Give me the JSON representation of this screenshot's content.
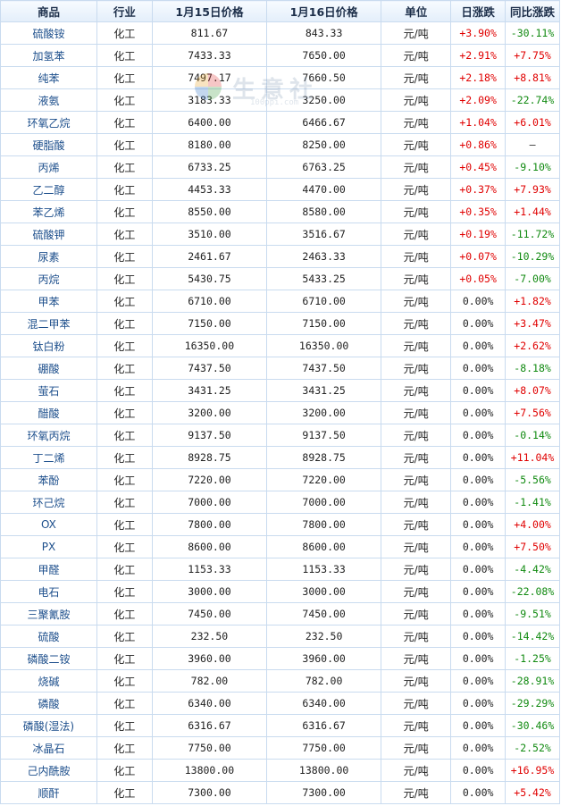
{
  "header": {
    "name": "商品",
    "industry": "行业",
    "price1": "1月15日价格",
    "price2": "1月16日价格",
    "unit": "单位",
    "daily": "日涨跌",
    "yoy": "同比涨跌"
  },
  "watermark": {
    "text": "生意社",
    "url": "100ppi.com"
  },
  "colors": {
    "up": "#e00000",
    "down": "#118a11",
    "border": "#c9dbef",
    "header_bg": "#e3eefa",
    "name": "#1d4f8c"
  },
  "rows": [
    {
      "name": "硫酸铵",
      "industry": "化工",
      "p1": "811.67",
      "p2": "843.33",
      "unit": "元/吨",
      "daily": "+3.90%",
      "daily_dir": "up",
      "yoy": "-30.11%",
      "yoy_dir": "down"
    },
    {
      "name": "加氢苯",
      "industry": "化工",
      "p1": "7433.33",
      "p2": "7650.00",
      "unit": "元/吨",
      "daily": "+2.91%",
      "daily_dir": "up",
      "yoy": "+7.75%",
      "yoy_dir": "up"
    },
    {
      "name": "纯苯",
      "industry": "化工",
      "p1": "7497.17",
      "p2": "7660.50",
      "unit": "元/吨",
      "daily": "+2.18%",
      "daily_dir": "up",
      "yoy": "+8.81%",
      "yoy_dir": "up"
    },
    {
      "name": "液氨",
      "industry": "化工",
      "p1": "3183.33",
      "p2": "3250.00",
      "unit": "元/吨",
      "daily": "+2.09%",
      "daily_dir": "up",
      "yoy": "-22.74%",
      "yoy_dir": "down"
    },
    {
      "name": "环氧乙烷",
      "industry": "化工",
      "p1": "6400.00",
      "p2": "6466.67",
      "unit": "元/吨",
      "daily": "+1.04%",
      "daily_dir": "up",
      "yoy": "+6.01%",
      "yoy_dir": "up"
    },
    {
      "name": "硬脂酸",
      "industry": "化工",
      "p1": "8180.00",
      "p2": "8250.00",
      "unit": "元/吨",
      "daily": "+0.86%",
      "daily_dir": "up",
      "yoy": "—",
      "yoy_dir": "flat"
    },
    {
      "name": "丙烯",
      "industry": "化工",
      "p1": "6733.25",
      "p2": "6763.25",
      "unit": "元/吨",
      "daily": "+0.45%",
      "daily_dir": "up",
      "yoy": "-9.10%",
      "yoy_dir": "down"
    },
    {
      "name": "乙二醇",
      "industry": "化工",
      "p1": "4453.33",
      "p2": "4470.00",
      "unit": "元/吨",
      "daily": "+0.37%",
      "daily_dir": "up",
      "yoy": "+7.93%",
      "yoy_dir": "up"
    },
    {
      "name": "苯乙烯",
      "industry": "化工",
      "p1": "8550.00",
      "p2": "8580.00",
      "unit": "元/吨",
      "daily": "+0.35%",
      "daily_dir": "up",
      "yoy": "+1.44%",
      "yoy_dir": "up"
    },
    {
      "name": "硫酸钾",
      "industry": "化工",
      "p1": "3510.00",
      "p2": "3516.67",
      "unit": "元/吨",
      "daily": "+0.19%",
      "daily_dir": "up",
      "yoy": "-11.72%",
      "yoy_dir": "down"
    },
    {
      "name": "尿素",
      "industry": "化工",
      "p1": "2461.67",
      "p2": "2463.33",
      "unit": "元/吨",
      "daily": "+0.07%",
      "daily_dir": "up",
      "yoy": "-10.29%",
      "yoy_dir": "down"
    },
    {
      "name": "丙烷",
      "industry": "化工",
      "p1": "5430.75",
      "p2": "5433.25",
      "unit": "元/吨",
      "daily": "+0.05%",
      "daily_dir": "up",
      "yoy": "-7.00%",
      "yoy_dir": "down"
    },
    {
      "name": "甲苯",
      "industry": "化工",
      "p1": "6710.00",
      "p2": "6710.00",
      "unit": "元/吨",
      "daily": "0.00%",
      "daily_dir": "flat",
      "yoy": "+1.82%",
      "yoy_dir": "up"
    },
    {
      "name": "混二甲苯",
      "industry": "化工",
      "p1": "7150.00",
      "p2": "7150.00",
      "unit": "元/吨",
      "daily": "0.00%",
      "daily_dir": "flat",
      "yoy": "+3.47%",
      "yoy_dir": "up"
    },
    {
      "name": "钛白粉",
      "industry": "化工",
      "p1": "16350.00",
      "p2": "16350.00",
      "unit": "元/吨",
      "daily": "0.00%",
      "daily_dir": "flat",
      "yoy": "+2.62%",
      "yoy_dir": "up"
    },
    {
      "name": "硼酸",
      "industry": "化工",
      "p1": "7437.50",
      "p2": "7437.50",
      "unit": "元/吨",
      "daily": "0.00%",
      "daily_dir": "flat",
      "yoy": "-8.18%",
      "yoy_dir": "down"
    },
    {
      "name": "萤石",
      "industry": "化工",
      "p1": "3431.25",
      "p2": "3431.25",
      "unit": "元/吨",
      "daily": "0.00%",
      "daily_dir": "flat",
      "yoy": "+8.07%",
      "yoy_dir": "up"
    },
    {
      "name": "醋酸",
      "industry": "化工",
      "p1": "3200.00",
      "p2": "3200.00",
      "unit": "元/吨",
      "daily": "0.00%",
      "daily_dir": "flat",
      "yoy": "+7.56%",
      "yoy_dir": "up"
    },
    {
      "name": "环氧丙烷",
      "industry": "化工",
      "p1": "9137.50",
      "p2": "9137.50",
      "unit": "元/吨",
      "daily": "0.00%",
      "daily_dir": "flat",
      "yoy": "-0.14%",
      "yoy_dir": "down"
    },
    {
      "name": "丁二烯",
      "industry": "化工",
      "p1": "8928.75",
      "p2": "8928.75",
      "unit": "元/吨",
      "daily": "0.00%",
      "daily_dir": "flat",
      "yoy": "+11.04%",
      "yoy_dir": "up"
    },
    {
      "name": "苯酚",
      "industry": "化工",
      "p1": "7220.00",
      "p2": "7220.00",
      "unit": "元/吨",
      "daily": "0.00%",
      "daily_dir": "flat",
      "yoy": "-5.56%",
      "yoy_dir": "down"
    },
    {
      "name": "环己烷",
      "industry": "化工",
      "p1": "7000.00",
      "p2": "7000.00",
      "unit": "元/吨",
      "daily": "0.00%",
      "daily_dir": "flat",
      "yoy": "-1.41%",
      "yoy_dir": "down"
    },
    {
      "name": "OX",
      "industry": "化工",
      "p1": "7800.00",
      "p2": "7800.00",
      "unit": "元/吨",
      "daily": "0.00%",
      "daily_dir": "flat",
      "yoy": "+4.00%",
      "yoy_dir": "up"
    },
    {
      "name": "PX",
      "industry": "化工",
      "p1": "8600.00",
      "p2": "8600.00",
      "unit": "元/吨",
      "daily": "0.00%",
      "daily_dir": "flat",
      "yoy": "+7.50%",
      "yoy_dir": "up"
    },
    {
      "name": "甲醛",
      "industry": "化工",
      "p1": "1153.33",
      "p2": "1153.33",
      "unit": "元/吨",
      "daily": "0.00%",
      "daily_dir": "flat",
      "yoy": "-4.42%",
      "yoy_dir": "down"
    },
    {
      "name": "电石",
      "industry": "化工",
      "p1": "3000.00",
      "p2": "3000.00",
      "unit": "元/吨",
      "daily": "0.00%",
      "daily_dir": "flat",
      "yoy": "-22.08%",
      "yoy_dir": "down"
    },
    {
      "name": "三聚氰胺",
      "industry": "化工",
      "p1": "7450.00",
      "p2": "7450.00",
      "unit": "元/吨",
      "daily": "0.00%",
      "daily_dir": "flat",
      "yoy": "-9.51%",
      "yoy_dir": "down"
    },
    {
      "name": "硫酸",
      "industry": "化工",
      "p1": "232.50",
      "p2": "232.50",
      "unit": "元/吨",
      "daily": "0.00%",
      "daily_dir": "flat",
      "yoy": "-14.42%",
      "yoy_dir": "down"
    },
    {
      "name": "磷酸二铵",
      "industry": "化工",
      "p1": "3960.00",
      "p2": "3960.00",
      "unit": "元/吨",
      "daily": "0.00%",
      "daily_dir": "flat",
      "yoy": "-1.25%",
      "yoy_dir": "down"
    },
    {
      "name": "烧碱",
      "industry": "化工",
      "p1": "782.00",
      "p2": "782.00",
      "unit": "元/吨",
      "daily": "0.00%",
      "daily_dir": "flat",
      "yoy": "-28.91%",
      "yoy_dir": "down"
    },
    {
      "name": "磷酸",
      "industry": "化工",
      "p1": "6340.00",
      "p2": "6340.00",
      "unit": "元/吨",
      "daily": "0.00%",
      "daily_dir": "flat",
      "yoy": "-29.29%",
      "yoy_dir": "down"
    },
    {
      "name": "磷酸(湿法)",
      "industry": "化工",
      "p1": "6316.67",
      "p2": "6316.67",
      "unit": "元/吨",
      "daily": "0.00%",
      "daily_dir": "flat",
      "yoy": "-30.46%",
      "yoy_dir": "down"
    },
    {
      "name": "冰晶石",
      "industry": "化工",
      "p1": "7750.00",
      "p2": "7750.00",
      "unit": "元/吨",
      "daily": "0.00%",
      "daily_dir": "flat",
      "yoy": "-2.52%",
      "yoy_dir": "down"
    },
    {
      "name": "己内酰胺",
      "industry": "化工",
      "p1": "13800.00",
      "p2": "13800.00",
      "unit": "元/吨",
      "daily": "0.00%",
      "daily_dir": "flat",
      "yoy": "+16.95%",
      "yoy_dir": "up"
    },
    {
      "name": "顺酐",
      "industry": "化工",
      "p1": "7300.00",
      "p2": "7300.00",
      "unit": "元/吨",
      "daily": "0.00%",
      "daily_dir": "flat",
      "yoy": "+5.42%",
      "yoy_dir": "up"
    }
  ]
}
